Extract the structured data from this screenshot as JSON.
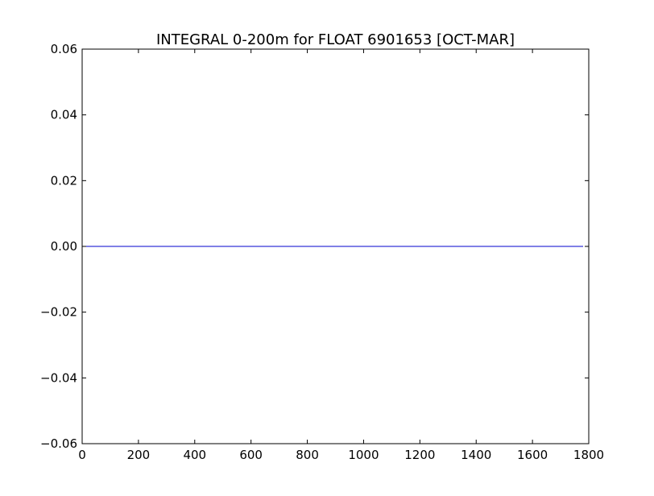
{
  "chart_data": {
    "type": "line",
    "title": "INTEGRAL 0-200m for FLOAT 6901653 [OCT-MAR]",
    "xlabel": "",
    "ylabel": "",
    "xlim": [
      0,
      1800
    ],
    "ylim": [
      -0.06,
      0.06
    ],
    "x_ticks": [
      0,
      200,
      400,
      600,
      800,
      1000,
      1200,
      1400,
      1600,
      1800
    ],
    "x_tick_labels": [
      "0",
      "200",
      "400",
      "600",
      "800",
      "1000",
      "1200",
      "1400",
      "1600",
      "1800"
    ],
    "y_ticks": [
      0.06,
      0.04,
      0.02,
      0.0,
      -0.02,
      -0.04,
      -0.06
    ],
    "y_tick_labels": [
      "0.06",
      "0.04",
      "0.02",
      "0.00",
      "−0.02",
      "−0.04",
      "−0.06"
    ],
    "grid": false,
    "series": [
      {
        "x": [
          0,
          1780
        ],
        "values": [
          0,
          0
        ],
        "color": "#0000cc"
      }
    ]
  }
}
